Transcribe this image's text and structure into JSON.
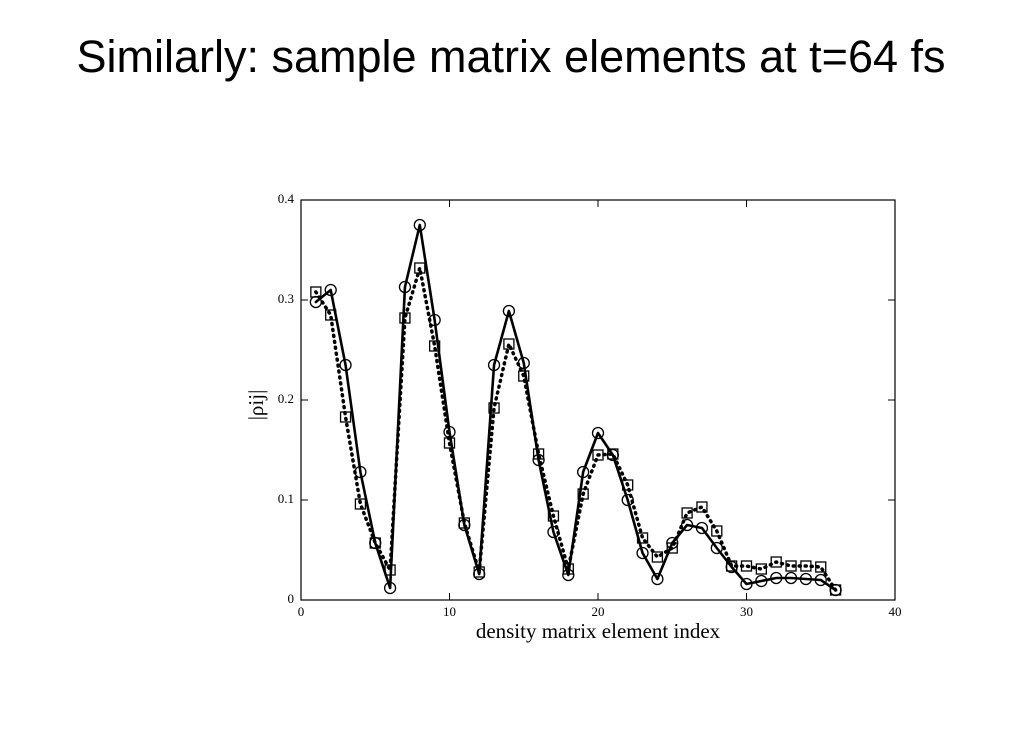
{
  "chart_data": {
    "type": "line",
    "title": "Similarly: sample matrix elements at t=64 fs",
    "xlabel": "density matrix element index",
    "ylabel": "|ρij|",
    "x": [
      1,
      2,
      3,
      4,
      5,
      6,
      7,
      8,
      9,
      10,
      11,
      12,
      13,
      14,
      15,
      16,
      17,
      18,
      19,
      20,
      21,
      22,
      23,
      24,
      25,
      26,
      27,
      28,
      29,
      30,
      31,
      32,
      33,
      34,
      35,
      36
    ],
    "series": [
      {
        "color": "#000000",
        "line_style": "solid",
        "marker": "circle",
        "values": [
          0.298,
          0.31,
          0.235,
          0.128,
          0.057,
          0.012,
          0.313,
          0.375,
          0.28,
          0.168,
          0.075,
          0.026,
          0.235,
          0.289,
          0.237,
          0.14,
          0.068,
          0.025,
          0.128,
          0.167,
          0.145,
          0.1,
          0.047,
          0.021,
          0.057,
          0.075,
          0.072,
          0.052,
          0.033,
          0.016,
          0.019,
          0.022,
          0.022,
          0.021,
          0.02,
          0.01
        ]
      },
      {
        "color": "#000000",
        "line_style": "dotted",
        "marker": "square",
        "values": [
          0.308,
          0.285,
          0.183,
          0.096,
          0.057,
          0.03,
          0.282,
          0.332,
          0.254,
          0.157,
          0.077,
          0.028,
          0.192,
          0.256,
          0.224,
          0.146,
          0.084,
          0.031,
          0.106,
          0.145,
          0.146,
          0.115,
          0.062,
          0.043,
          0.052,
          0.087,
          0.093,
          0.069,
          0.034,
          0.034,
          0.031,
          0.038,
          0.034,
          0.034,
          0.033,
          0.01
        ]
      }
    ],
    "xlim": [
      0,
      40
    ],
    "xticks": [
      0,
      10,
      20,
      30,
      40
    ],
    "ylim": [
      0,
      0.4
    ],
    "yticks": [
      0,
      0.1,
      0.2,
      0.3,
      0.4
    ],
    "grid": false
  }
}
